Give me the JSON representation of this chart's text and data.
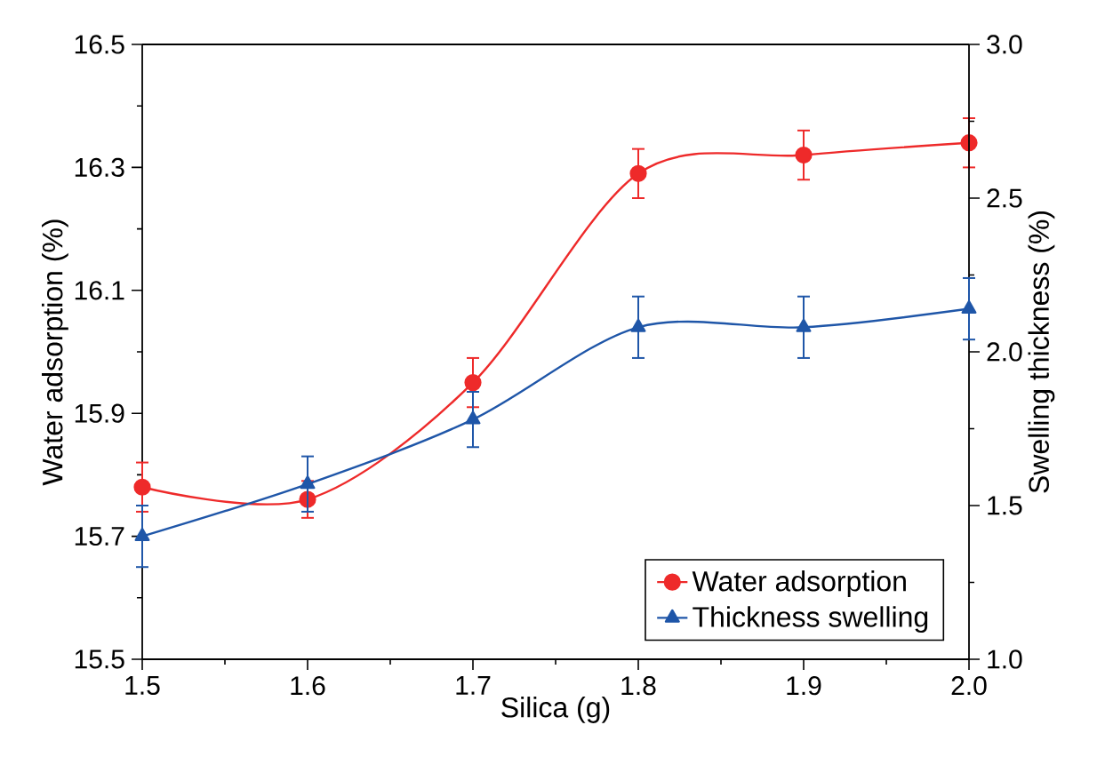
{
  "chart_data": {
    "type": "line",
    "xlabel": "Silica (g)",
    "ylabel": "Water adsorption (%)",
    "y2label": "Swelling thickness (%)",
    "x": [
      1.5,
      1.6,
      1.7,
      1.8,
      1.9,
      2.0
    ],
    "series": [
      {
        "name": "Water adsorption",
        "color": "#ee2a2a",
        "marker": "circle",
        "values": [
          15.78,
          15.76,
          15.95,
          16.29,
          16.32,
          16.34
        ],
        "errors": [
          0.04,
          0.03,
          0.04,
          0.04,
          0.04,
          0.04
        ]
      },
      {
        "name": "Thickness swelling",
        "color": "#1f56a8",
        "marker": "triangle",
        "axis": "y2",
        "values": [
          1.4,
          1.57,
          1.78,
          2.08,
          2.08,
          2.14
        ],
        "errors": [
          0.1,
          0.09,
          0.09,
          0.1,
          0.1,
          0.1
        ]
      }
    ],
    "xlim": [
      1.5,
      2.0
    ],
    "xticks": [
      1.5,
      1.6,
      1.7,
      1.8,
      1.9,
      {
        "value": 2.0,
        "label": "2.0"
      }
    ],
    "ylim": [
      15.5,
      16.5
    ],
    "yticks": [
      15.5,
      15.7,
      15.9,
      16.1,
      16.3,
      16.5
    ],
    "y2lim": [
      1.0,
      3.0
    ],
    "y2ticks": [
      {
        "value": 1.0,
        "label": "1.0"
      },
      1.5,
      {
        "value": 2.0,
        "label": "2.0"
      },
      2.5,
      {
        "value": 3.0,
        "label": "3.0"
      }
    ],
    "legend": "bottom right",
    "grid": false,
    "line_style": "solid"
  }
}
